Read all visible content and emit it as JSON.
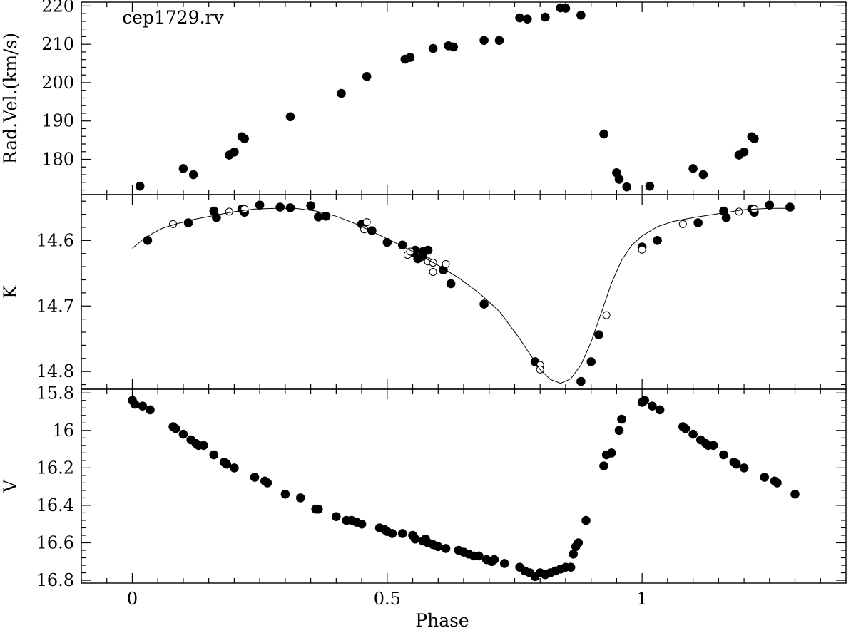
{
  "chart_data": [
    {
      "type": "scatter",
      "panel": "top",
      "annotation": "cep1729.rv",
      "ylabel": "Rad.Vel.(km/s)",
      "xlabel": "",
      "xlim": [
        -0.1,
        1.4
      ],
      "ylim": [
        170.8,
        221.0
      ],
      "y_inverted": false,
      "yticks": [
        180,
        190,
        200,
        210,
        220
      ],
      "yminor_step": 2,
      "series": [
        {
          "style": "filled",
          "points": [
            [
              0.015,
              173.0
            ],
            [
              0.1,
              177.6
            ],
            [
              0.12,
              176.0
            ],
            [
              0.19,
              181.1
            ],
            [
              0.2,
              181.9
            ],
            [
              0.215,
              185.9
            ],
            [
              0.22,
              185.4
            ],
            [
              0.31,
              191.1
            ],
            [
              0.41,
              197.2
            ],
            [
              0.46,
              201.6
            ],
            [
              0.535,
              206.1
            ],
            [
              0.545,
              206.6
            ],
            [
              0.59,
              208.9
            ],
            [
              0.62,
              209.6
            ],
            [
              0.63,
              209.3
            ],
            [
              0.69,
              211.0
            ],
            [
              0.72,
              211.0
            ],
            [
              0.76,
              216.9
            ],
            [
              0.775,
              216.6
            ],
            [
              0.81,
              217.1
            ],
            [
              0.84,
              219.5
            ],
            [
              0.85,
              219.4
            ],
            [
              0.88,
              217.6
            ],
            [
              0.925,
              186.6
            ],
            [
              0.95,
              176.5
            ],
            [
              0.955,
              174.8
            ],
            [
              0.97,
              172.8
            ],
            [
              1.015,
              173.0
            ],
            [
              1.1,
              177.6
            ],
            [
              1.12,
              176.0
            ],
            [
              1.19,
              181.1
            ],
            [
              1.2,
              181.9
            ],
            [
              1.215,
              185.9
            ],
            [
              1.22,
              185.4
            ]
          ]
        }
      ]
    },
    {
      "type": "scatter",
      "panel": "middle",
      "ylabel": "K",
      "xlabel": "",
      "xlim": [
        -0.1,
        1.4
      ],
      "ylim": [
        14.827,
        14.53
      ],
      "y_inverted": true,
      "yticks": [
        14.6,
        14.7,
        14.8
      ],
      "yminor_step": 0.02,
      "series": [
        {
          "style": "filled",
          "points": [
            [
              0.03,
              14.6
            ],
            [
              0.11,
              14.573
            ],
            [
              0.16,
              14.555
            ],
            [
              0.165,
              14.565
            ],
            [
              0.215,
              14.552
            ],
            [
              0.22,
              14.557
            ],
            [
              0.25,
              14.546
            ],
            [
              0.29,
              14.549
            ],
            [
              0.31,
              14.55
            ],
            [
              0.35,
              14.547
            ],
            [
              0.365,
              14.564
            ],
            [
              0.38,
              14.563
            ],
            [
              0.45,
              14.575
            ],
            [
              0.47,
              14.585
            ],
            [
              0.5,
              14.603
            ],
            [
              0.53,
              14.607
            ],
            [
              0.55,
              14.618
            ],
            [
              0.555,
              14.615
            ],
            [
              0.56,
              14.628
            ],
            [
              0.57,
              14.617
            ],
            [
              0.57,
              14.624
            ],
            [
              0.58,
              14.615
            ],
            [
              0.61,
              14.645
            ],
            [
              0.625,
              14.666
            ],
            [
              0.69,
              14.697
            ],
            [
              0.79,
              14.785
            ],
            [
              0.9,
              14.785
            ],
            [
              0.915,
              14.744
            ],
            [
              0.88,
              14.815
            ],
            [
              1.0,
              14.61
            ],
            [
              1.03,
              14.6
            ],
            [
              1.11,
              14.573
            ],
            [
              1.16,
              14.555
            ],
            [
              1.165,
              14.565
            ],
            [
              1.215,
              14.552
            ],
            [
              1.22,
              14.557
            ],
            [
              1.25,
              14.546
            ],
            [
              1.29,
              14.549
            ]
          ]
        },
        {
          "style": "open",
          "points": [
            [
              0.08,
              14.575
            ],
            [
              0.19,
              14.556
            ],
            [
              0.22,
              14.552
            ],
            [
              0.455,
              14.583
            ],
            [
              0.46,
              14.572
            ],
            [
              0.54,
              14.622
            ],
            [
              0.545,
              14.617
            ],
            [
              0.58,
              14.632
            ],
            [
              0.59,
              14.634
            ],
            [
              0.59,
              14.648
            ],
            [
              0.615,
              14.636
            ],
            [
              0.8,
              14.79
            ],
            [
              0.8,
              14.797
            ],
            [
              0.93,
              14.714
            ],
            [
              1.0,
              14.614
            ],
            [
              1.08,
              14.575
            ],
            [
              1.19,
              14.556
            ],
            [
              1.22,
              14.552
            ]
          ]
        },
        {
          "style": "curve",
          "points": [
            [
              0.0,
              14.612
            ],
            [
              0.02,
              14.599
            ],
            [
              0.04,
              14.589
            ],
            [
              0.06,
              14.581
            ],
            [
              0.09,
              14.574
            ],
            [
              0.12,
              14.568
            ],
            [
              0.16,
              14.562
            ],
            [
              0.2,
              14.556
            ],
            [
              0.24,
              14.552
            ],
            [
              0.28,
              14.551
            ],
            [
              0.32,
              14.551
            ],
            [
              0.36,
              14.555
            ],
            [
              0.4,
              14.563
            ],
            [
              0.44,
              14.575
            ],
            [
              0.48,
              14.59
            ],
            [
              0.52,
              14.605
            ],
            [
              0.56,
              14.621
            ],
            [
              0.6,
              14.638
            ],
            [
              0.64,
              14.657
            ],
            [
              0.68,
              14.68
            ],
            [
              0.72,
              14.708
            ],
            [
              0.76,
              14.75
            ],
            [
              0.8,
              14.797
            ],
            [
              0.82,
              14.812
            ],
            [
              0.84,
              14.818
            ],
            [
              0.86,
              14.811
            ],
            [
              0.88,
              14.79
            ],
            [
              0.9,
              14.755
            ],
            [
              0.92,
              14.71
            ],
            [
              0.94,
              14.665
            ],
            [
              0.96,
              14.63
            ],
            [
              0.98,
              14.607
            ],
            [
              1.0,
              14.593
            ],
            [
              1.03,
              14.579
            ],
            [
              1.06,
              14.571
            ],
            [
              1.1,
              14.565
            ],
            [
              1.15,
              14.559
            ],
            [
              1.2,
              14.553
            ],
            [
              1.25,
              14.551
            ],
            [
              1.3,
              14.551
            ]
          ]
        }
      ]
    },
    {
      "type": "scatter",
      "panel": "bottom",
      "ylabel": "V",
      "xlabel": "Phase",
      "xlim": [
        -0.1,
        1.4
      ],
      "ylim": [
        16.815,
        15.78
      ],
      "y_inverted": true,
      "yticks": [
        15.8,
        16,
        16.2,
        16.4,
        16.6,
        16.8
      ],
      "yminor_step": 0.04,
      "xticks": [
        0,
        0.5,
        1
      ],
      "xminor_step": 0.05,
      "series": [
        {
          "style": "filled",
          "points": [
            [
              0.0,
              15.84
            ],
            [
              0.005,
              15.86
            ],
            [
              0.02,
              15.87
            ],
            [
              0.035,
              15.89
            ],
            [
              0.08,
              15.98
            ],
            [
              0.085,
              15.99
            ],
            [
              0.1,
              16.02
            ],
            [
              0.115,
              16.05
            ],
            [
              0.125,
              16.07
            ],
            [
              0.13,
              16.08
            ],
            [
              0.14,
              16.08
            ],
            [
              0.16,
              16.13
            ],
            [
              0.18,
              16.17
            ],
            [
              0.185,
              16.18
            ],
            [
              0.2,
              16.2
            ],
            [
              0.24,
              16.25
            ],
            [
              0.26,
              16.27
            ],
            [
              0.265,
              16.28
            ],
            [
              0.3,
              16.34
            ],
            [
              0.33,
              16.36
            ],
            [
              0.36,
              16.42
            ],
            [
              0.365,
              16.42
            ],
            [
              0.4,
              16.46
            ],
            [
              0.42,
              16.48
            ],
            [
              0.43,
              16.48
            ],
            [
              0.44,
              16.49
            ],
            [
              0.45,
              16.5
            ],
            [
              0.485,
              16.52
            ],
            [
              0.495,
              16.53
            ],
            [
              0.5,
              16.54
            ],
            [
              0.51,
              16.55
            ],
            [
              0.53,
              16.55
            ],
            [
              0.55,
              16.56
            ],
            [
              0.555,
              16.58
            ],
            [
              0.57,
              16.59
            ],
            [
              0.575,
              16.58
            ],
            [
              0.58,
              16.6
            ],
            [
              0.59,
              16.61
            ],
            [
              0.6,
              16.62
            ],
            [
              0.615,
              16.63
            ],
            [
              0.64,
              16.64
            ],
            [
              0.65,
              16.65
            ],
            [
              0.66,
              16.66
            ],
            [
              0.67,
              16.67
            ],
            [
              0.68,
              16.67
            ],
            [
              0.695,
              16.69
            ],
            [
              0.705,
              16.7
            ],
            [
              0.71,
              16.69
            ],
            [
              0.73,
              16.71
            ],
            [
              0.76,
              16.73
            ],
            [
              0.77,
              16.75
            ],
            [
              0.78,
              16.76
            ],
            [
              0.79,
              16.78
            ],
            [
              0.8,
              16.76
            ],
            [
              0.81,
              16.77
            ],
            [
              0.82,
              16.76
            ],
            [
              0.83,
              16.75
            ],
            [
              0.84,
              16.74
            ],
            [
              0.85,
              16.73
            ],
            [
              0.86,
              16.73
            ],
            [
              0.865,
              16.66
            ],
            [
              0.87,
              16.62
            ],
            [
              0.875,
              16.6
            ],
            [
              0.89,
              16.48
            ],
            [
              0.925,
              16.19
            ],
            [
              0.93,
              16.13
            ],
            [
              0.94,
              16.12
            ],
            [
              0.955,
              16.0
            ],
            [
              0.96,
              15.94
            ],
            [
              1.0,
              15.85
            ],
            [
              1.005,
              15.84
            ],
            [
              1.02,
              15.87
            ],
            [
              1.035,
              15.89
            ],
            [
              1.08,
              15.98
            ],
            [
              1.085,
              15.99
            ],
            [
              1.1,
              16.02
            ],
            [
              1.115,
              16.05
            ],
            [
              1.125,
              16.07
            ],
            [
              1.13,
              16.08
            ],
            [
              1.14,
              16.08
            ],
            [
              1.16,
              16.13
            ],
            [
              1.18,
              16.17
            ],
            [
              1.185,
              16.18
            ],
            [
              1.2,
              16.2
            ],
            [
              1.24,
              16.25
            ],
            [
              1.26,
              16.27
            ],
            [
              1.265,
              16.28
            ],
            [
              1.3,
              16.34
            ]
          ]
        }
      ]
    }
  ]
}
